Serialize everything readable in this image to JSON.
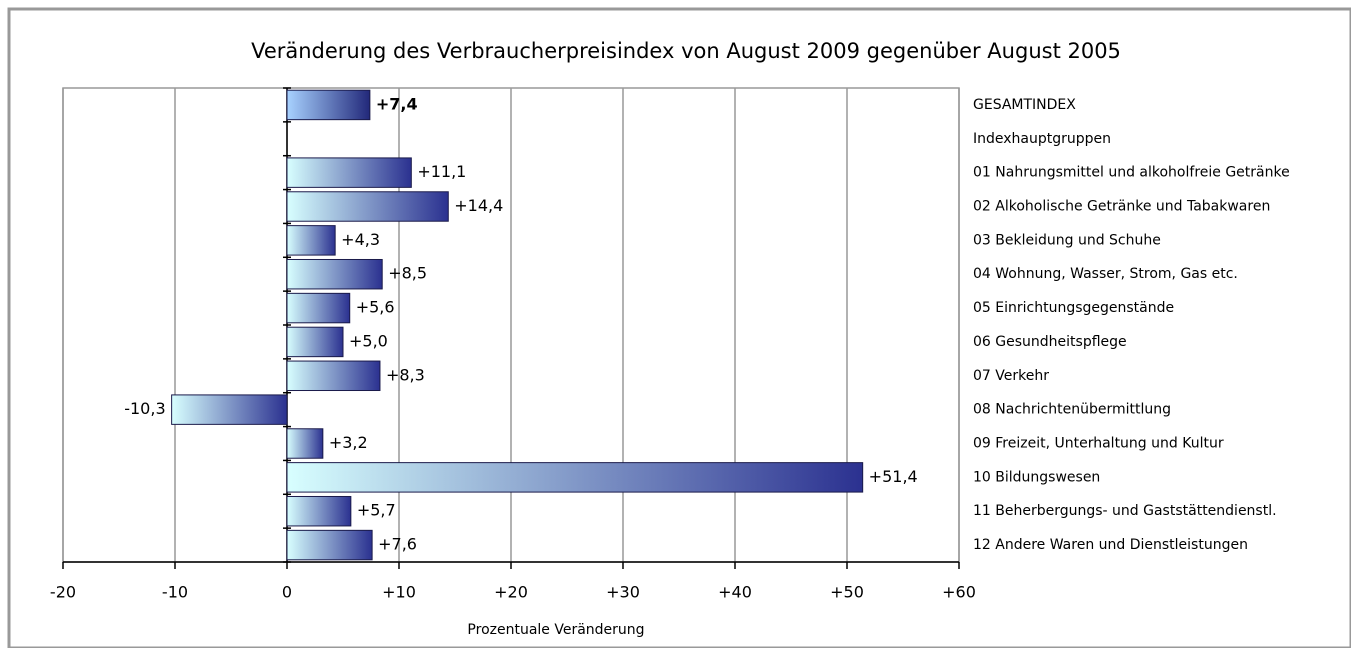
{
  "chart_data": {
    "type": "bar",
    "orientation": "horizontal",
    "title": "Veränderung des Verbraucherpreisindex von August 2009 gegenüber August 2005",
    "x_label": "Prozentuale Veränderung",
    "categories": [
      "GESAMTINDEX",
      "Indexhauptgruppen",
      "01  Nahrungsmittel und alkoholfreie Getränke",
      "02  Alkoholische Getränke und Tabakwaren",
      "03  Bekleidung und Schuhe",
      "04  Wohnung, Wasser, Strom, Gas etc.",
      "05  Einrichtungsgegenstände",
      "06  Gesundheitspflege",
      "07  Verkehr",
      "08  Nachrichtenübermittlung",
      "09  Freizeit, Unterhaltung und Kultur",
      "10  Bildungswesen",
      "11  Beherbergungs- und Gaststättendienstl.",
      "12  Andere Waren und Dienstleistungen"
    ],
    "values": [
      7.4,
      null,
      11.1,
      14.4,
      4.3,
      8.5,
      5.6,
      5.0,
      8.3,
      -10.3,
      3.2,
      51.4,
      5.7,
      7.6
    ],
    "value_labels": [
      "+7,4",
      null,
      "+11,1",
      "+14,4",
      "+4,3",
      "+8,5",
      "+5,6",
      "+5,0",
      "+8,3",
      "-10,3",
      "+3,2",
      "+51,4",
      "+5,7",
      "+7,6"
    ],
    "gradient_colors": [
      "#d8ffff",
      "#2b3190"
    ],
    "total_gradient_colors": [
      "#a8d2ff",
      "#22287a"
    ],
    "xlim": [
      -20,
      60
    ],
    "xticks": [
      -20,
      -10,
      0,
      {
        "value": 10,
        "label": "+10"
      },
      {
        "value": 20,
        "label": "+20"
      },
      {
        "value": 30,
        "label": "+30"
      },
      {
        "value": 40,
        "label": "+40"
      },
      {
        "value": 50,
        "label": "+50"
      },
      {
        "value": 60,
        "label": "+60"
      }
    ],
    "grid": true
  }
}
